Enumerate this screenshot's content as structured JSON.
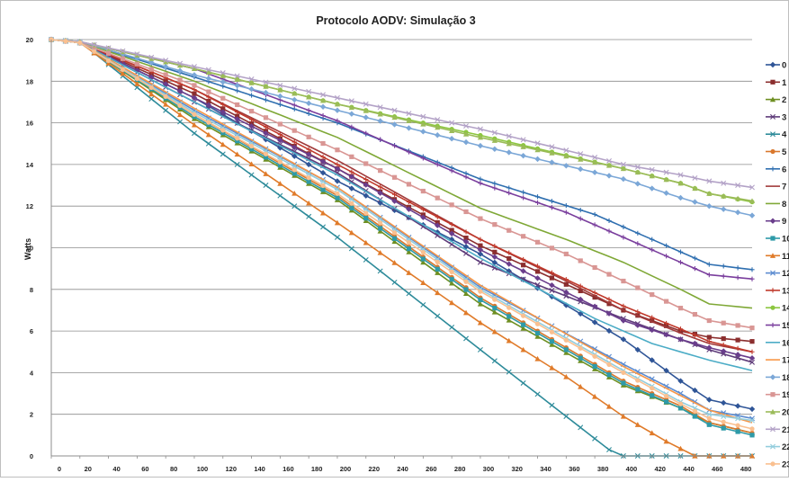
{
  "chart_data": {
    "type": "line",
    "title": "Protocolo AODV: Simulação 3",
    "xlabel": "",
    "ylabel": "Watts",
    "xlim": [
      0,
      490
    ],
    "ylim": [
      0,
      20
    ],
    "x_ticks": [
      "0",
      "20",
      "40",
      "60",
      "80",
      "100",
      "120",
      "140",
      "160",
      "180",
      "200",
      "220",
      "240",
      "260",
      "280",
      "300",
      "320",
      "340",
      "360",
      "380",
      "400",
      "420",
      "440",
      "460",
      "480"
    ],
    "y_ticks": [
      "0",
      "2",
      "4",
      "6",
      "8",
      "10",
      "12",
      "14",
      "16",
      "18",
      "20"
    ],
    "grid": "horizontal",
    "legend_position": "right",
    "series": [
      {
        "name": "0",
        "color": "#2F5597",
        "marker": "diamond",
        "points": [
          [
            0,
            20
          ],
          [
            20,
            19.85
          ],
          [
            100,
            17.2
          ],
          [
            200,
            13.2
          ],
          [
            300,
            9.7
          ],
          [
            400,
            5.6
          ],
          [
            440,
            3.6
          ],
          [
            460,
            2.7
          ],
          [
            490,
            2.25
          ]
        ]
      },
      {
        "name": "1",
        "color": "#8B2E2E",
        "marker": "square",
        "points": [
          [
            0,
            20
          ],
          [
            20,
            19.85
          ],
          [
            100,
            17.4
          ],
          [
            200,
            13.8
          ],
          [
            300,
            10.1
          ],
          [
            400,
            7.0
          ],
          [
            440,
            6.0
          ],
          [
            460,
            5.7
          ],
          [
            490,
            5.5
          ]
        ]
      },
      {
        "name": "2",
        "color": "#6E8F22",
        "marker": "triangle",
        "points": [
          [
            0,
            20
          ],
          [
            20,
            19.85
          ],
          [
            100,
            16.2
          ],
          [
            200,
            12.3
          ],
          [
            300,
            7.3
          ],
          [
            400,
            3.4
          ],
          [
            440,
            2.3
          ],
          [
            460,
            1.6
          ],
          [
            490,
            1.1
          ]
        ]
      },
      {
        "name": "3",
        "color": "#5F3C7A",
        "marker": "x",
        "points": [
          [
            0,
            20
          ],
          [
            20,
            19.85
          ],
          [
            100,
            17.0
          ],
          [
            200,
            13.6
          ],
          [
            300,
            9.3
          ],
          [
            400,
            6.6
          ],
          [
            440,
            5.6
          ],
          [
            460,
            5.1
          ],
          [
            490,
            4.5
          ]
        ]
      },
      {
        "name": "4",
        "color": "#2E8B9A",
        "marker": "x",
        "points": [
          [
            0,
            20
          ],
          [
            20,
            19.9
          ],
          [
            100,
            15.5
          ],
          [
            200,
            10.5
          ],
          [
            300,
            5.1
          ],
          [
            360,
            1.9
          ],
          [
            390,
            0.3
          ],
          [
            400,
            0.0
          ],
          [
            490,
            0.0
          ]
        ]
      },
      {
        "name": "5",
        "color": "#D9782D",
        "marker": "circle",
        "points": [
          [
            0,
            20
          ],
          [
            20,
            19.85
          ],
          [
            100,
            16.4
          ],
          [
            200,
            12.5
          ],
          [
            300,
            7.6
          ],
          [
            400,
            3.6
          ],
          [
            440,
            2.4
          ],
          [
            460,
            1.6
          ],
          [
            490,
            1.1
          ]
        ]
      },
      {
        "name": "6",
        "color": "#2F6FB0",
        "marker": "plus",
        "points": [
          [
            0,
            20
          ],
          [
            20,
            19.9
          ],
          [
            100,
            18.2
          ],
          [
            200,
            16.0
          ],
          [
            300,
            13.3
          ],
          [
            380,
            11.6
          ],
          [
            420,
            10.4
          ],
          [
            460,
            9.2
          ],
          [
            490,
            8.95
          ]
        ]
      },
      {
        "name": "7",
        "color": "#A13A3A",
        "marker": "none",
        "points": [
          [
            0,
            20
          ],
          [
            20,
            19.85
          ],
          [
            100,
            17.6
          ],
          [
            200,
            14.2
          ],
          [
            300,
            10.4
          ],
          [
            360,
            8.4
          ],
          [
            400,
            7.0
          ],
          [
            440,
            5.9
          ],
          [
            460,
            5.4
          ],
          [
            490,
            5.0
          ]
        ]
      },
      {
        "name": "8",
        "color": "#7FA836",
        "marker": "none",
        "points": [
          [
            0,
            20
          ],
          [
            20,
            19.9
          ],
          [
            100,
            18.0
          ],
          [
            200,
            15.3
          ],
          [
            300,
            11.9
          ],
          [
            360,
            10.4
          ],
          [
            400,
            9.3
          ],
          [
            440,
            8.0
          ],
          [
            460,
            7.3
          ],
          [
            490,
            7.1
          ]
        ]
      },
      {
        "name": "9",
        "color": "#6A3D8C",
        "marker": "diamond",
        "points": [
          [
            0,
            20
          ],
          [
            20,
            19.85
          ],
          [
            100,
            17.2
          ],
          [
            200,
            13.8
          ],
          [
            300,
            9.9
          ],
          [
            400,
            6.5
          ],
          [
            440,
            5.6
          ],
          [
            460,
            5.2
          ],
          [
            490,
            4.7
          ]
        ]
      },
      {
        "name": "10",
        "color": "#2E9AA8",
        "marker": "square",
        "points": [
          [
            0,
            20
          ],
          [
            20,
            19.85
          ],
          [
            100,
            16.3
          ],
          [
            200,
            12.4
          ],
          [
            300,
            7.5
          ],
          [
            400,
            3.5
          ],
          [
            440,
            2.3
          ],
          [
            460,
            1.5
          ],
          [
            490,
            1.0
          ]
        ]
      },
      {
        "name": "11",
        "color": "#E07B2A",
        "marker": "triangle",
        "points": [
          [
            0,
            20
          ],
          [
            20,
            19.85
          ],
          [
            100,
            15.9
          ],
          [
            200,
            11.2
          ],
          [
            300,
            6.4
          ],
          [
            360,
            3.8
          ],
          [
            400,
            1.9
          ],
          [
            430,
            0.7
          ],
          [
            450,
            0.0
          ],
          [
            490,
            0.0
          ]
        ]
      },
      {
        "name": "12",
        "color": "#5B8BD0",
        "marker": "x",
        "points": [
          [
            0,
            20
          ],
          [
            20,
            19.85
          ],
          [
            100,
            16.6
          ],
          [
            200,
            12.9
          ],
          [
            300,
            8.1
          ],
          [
            400,
            4.4
          ],
          [
            440,
            3.0
          ],
          [
            460,
            2.2
          ],
          [
            490,
            1.8
          ]
        ]
      },
      {
        "name": "13",
        "color": "#C0392B",
        "marker": "plus",
        "points": [
          [
            0,
            20
          ],
          [
            20,
            19.85
          ],
          [
            100,
            17.6
          ],
          [
            200,
            14.0
          ],
          [
            300,
            10.4
          ],
          [
            400,
            7.2
          ],
          [
            440,
            6.1
          ],
          [
            460,
            5.5
          ],
          [
            490,
            5.0
          ]
        ]
      },
      {
        "name": "14",
        "color": "#8CC63F",
        "marker": "circle",
        "points": [
          [
            0,
            20
          ],
          [
            20,
            19.9
          ],
          [
            100,
            18.6
          ],
          [
            200,
            16.9
          ],
          [
            300,
            15.4
          ],
          [
            400,
            13.8
          ],
          [
            440,
            13.1
          ],
          [
            460,
            12.6
          ],
          [
            490,
            12.2
          ]
        ]
      },
      {
        "name": "15",
        "color": "#7A3E9D",
        "marker": "plus",
        "points": [
          [
            0,
            20
          ],
          [
            20,
            19.9
          ],
          [
            100,
            18.6
          ],
          [
            200,
            16.1
          ],
          [
            300,
            13.1
          ],
          [
            360,
            11.7
          ],
          [
            400,
            10.5
          ],
          [
            440,
            9.3
          ],
          [
            460,
            8.7
          ],
          [
            490,
            8.5
          ]
        ]
      },
      {
        "name": "16",
        "color": "#4BACC6",
        "marker": "none",
        "points": [
          [
            0,
            20
          ],
          [
            20,
            19.85
          ],
          [
            100,
            17.0
          ],
          [
            200,
            13.5
          ],
          [
            300,
            9.5
          ],
          [
            380,
            6.6
          ],
          [
            420,
            5.4
          ],
          [
            460,
            4.6
          ],
          [
            490,
            4.1
          ]
        ]
      },
      {
        "name": "17",
        "color": "#F79646",
        "marker": "none",
        "points": [
          [
            0,
            20
          ],
          [
            20,
            19.85
          ],
          [
            100,
            16.7
          ],
          [
            200,
            12.9
          ],
          [
            300,
            8.2
          ],
          [
            400,
            4.3
          ],
          [
            440,
            2.9
          ],
          [
            460,
            2.2
          ],
          [
            490,
            1.6
          ]
        ]
      },
      {
        "name": "18",
        "color": "#7BA7D7",
        "marker": "diamond",
        "points": [
          [
            0,
            20
          ],
          [
            20,
            19.9
          ],
          [
            100,
            18.3
          ],
          [
            200,
            16.6
          ],
          [
            300,
            14.9
          ],
          [
            400,
            13.3
          ],
          [
            440,
            12.4
          ],
          [
            460,
            12.0
          ],
          [
            490,
            11.55
          ]
        ]
      },
      {
        "name": "19",
        "color": "#D99694",
        "marker": "square",
        "points": [
          [
            0,
            20
          ],
          [
            20,
            19.85
          ],
          [
            100,
            17.8
          ],
          [
            200,
            14.7
          ],
          [
            300,
            11.4
          ],
          [
            360,
            9.7
          ],
          [
            400,
            8.4
          ],
          [
            440,
            7.1
          ],
          [
            460,
            6.5
          ],
          [
            490,
            6.15
          ]
        ]
      },
      {
        "name": "20",
        "color": "#9BBB59",
        "marker": "triangle",
        "points": [
          [
            0,
            20
          ],
          [
            20,
            19.9
          ],
          [
            100,
            18.6
          ],
          [
            200,
            16.9
          ],
          [
            300,
            15.3
          ],
          [
            400,
            13.8
          ],
          [
            440,
            13.1
          ],
          [
            460,
            12.6
          ],
          [
            490,
            12.25
          ]
        ]
      },
      {
        "name": "21",
        "color": "#B3A2C7",
        "marker": "x",
        "points": [
          [
            0,
            20
          ],
          [
            20,
            19.9
          ],
          [
            100,
            18.7
          ],
          [
            200,
            17.2
          ],
          [
            300,
            15.7
          ],
          [
            400,
            14.0
          ],
          [
            440,
            13.5
          ],
          [
            460,
            13.2
          ],
          [
            490,
            12.9
          ]
        ]
      },
      {
        "name": "22",
        "color": "#93CDDD",
        "marker": "x",
        "points": [
          [
            0,
            20
          ],
          [
            20,
            19.85
          ],
          [
            100,
            16.5
          ],
          [
            200,
            12.8
          ],
          [
            300,
            8.0
          ],
          [
            400,
            4.1
          ],
          [
            440,
            2.6
          ],
          [
            460,
            2.0
          ],
          [
            490,
            1.7
          ]
        ]
      },
      {
        "name": "23",
        "color": "#FAC090",
        "marker": "circle",
        "points": [
          [
            0,
            20
          ],
          [
            20,
            19.85
          ],
          [
            100,
            16.4
          ],
          [
            200,
            12.6
          ],
          [
            300,
            7.9
          ],
          [
            400,
            4.0
          ],
          [
            440,
            2.5
          ],
          [
            460,
            1.8
          ],
          [
            490,
            1.3
          ]
        ]
      }
    ]
  }
}
